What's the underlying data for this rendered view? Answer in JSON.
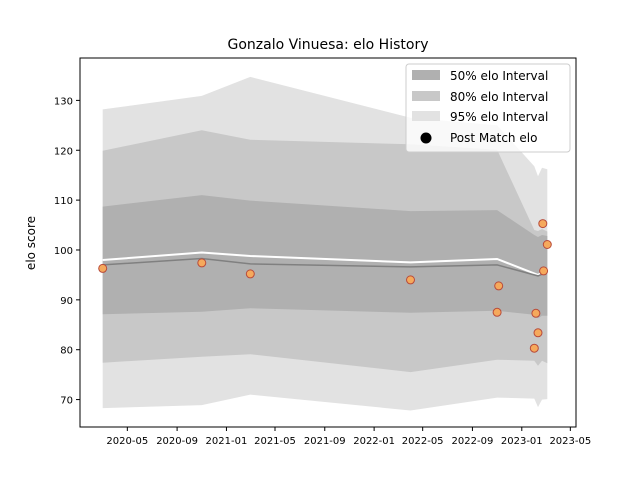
{
  "chart_data": {
    "type": "line",
    "title": "Gonzalo Vinuesa: elo History",
    "xlabel": "",
    "ylabel": "elo score",
    "x_axis": "date",
    "xlim": [
      "2020-01-05",
      "2023-05-15"
    ],
    "ylim": [
      64.5,
      138.5
    ],
    "x_ticks": [
      "2020-05-01",
      "2020-09-01",
      "2021-01-01",
      "2021-05-01",
      "2021-09-01",
      "2022-01-01",
      "2022-05-01",
      "2022-09-01",
      "2023-01-01",
      "2023-05-01"
    ],
    "x_tick_labels": [
      "2020-05",
      "2020-09",
      "2021-01",
      "2021-05",
      "2021-09",
      "2022-01",
      "2022-05",
      "2022-09",
      "2023-01",
      "2023-05"
    ],
    "y_ticks": [
      70,
      80,
      90,
      100,
      110,
      120,
      130
    ],
    "grid": false,
    "legend_position": "top-right",
    "legend": [
      {
        "label": "50% elo Interval",
        "kind": "patch",
        "color": "#b0b0b0"
      },
      {
        "label": "80% elo Interval",
        "kind": "patch",
        "color": "#c8c8c8"
      },
      {
        "label": "95% elo Interval",
        "kind": "patch",
        "color": "#e2e2e2"
      },
      {
        "label": "Post Match elo",
        "kind": "marker",
        "color": "#000000"
      }
    ],
    "colors": {
      "band_50": "#b0b0b0",
      "band_80": "#c8c8c8",
      "band_95": "#e2e2e2",
      "mean_line": "#ffffff",
      "median_line": "#808080",
      "point_fill": "#f5a95c",
      "point_edge": "#b84a3a"
    },
    "bands": {
      "x": [
        "2020-03-01",
        "2020-11-01",
        "2021-03-01",
        "2022-04-01",
        "2022-11-01",
        "2023-02-01",
        "2023-02-10",
        "2023-02-20",
        "2023-03-05"
      ],
      "p95_low": [
        68.3,
        68.9,
        71.0,
        67.8,
        70.4,
        70.2,
        68.5,
        70.0,
        70.1
      ],
      "p95_high": [
        128.2,
        130.9,
        134.7,
        126.5,
        125.0,
        116.8,
        114.8,
        116.5,
        116.2
      ],
      "p80_low": [
        77.4,
        78.6,
        79.1,
        75.5,
        78.0,
        77.8,
        76.8,
        77.8,
        77.3
      ],
      "p80_high": [
        119.9,
        124.0,
        122.1,
        121.2,
        120.1,
        104.0,
        103.8,
        104.2,
        103.7
      ],
      "p50_low": [
        87.1,
        87.6,
        88.3,
        87.4,
        87.8,
        87.0,
        86.3,
        86.8,
        86.8
      ],
      "p50_high": [
        108.7,
        111.0,
        109.9,
        107.8,
        108.0,
        103.0,
        102.6,
        103.0,
        102.8
      ]
    },
    "mean_line": {
      "x": [
        "2020-03-01",
        "2020-11-01",
        "2021-03-01",
        "2022-04-01",
        "2022-11-01",
        "2023-02-10",
        "2023-03-05"
      ],
      "y": [
        98.0,
        99.5,
        98.8,
        97.5,
        98.2,
        95.0,
        96.0
      ]
    },
    "median_line": {
      "x": [
        "2020-03-01",
        "2020-11-01",
        "2021-03-01",
        "2022-04-01",
        "2022-11-01",
        "2023-02-10",
        "2023-03-05"
      ],
      "y": [
        97.0,
        98.3,
        97.2,
        96.6,
        97.0,
        94.8,
        95.6
      ]
    },
    "series": [
      {
        "name": "Post Match elo",
        "points": [
          {
            "x": "2020-03-01",
            "y": 96.3
          },
          {
            "x": "2020-11-01",
            "y": 97.4
          },
          {
            "x": "2021-03-01",
            "y": 95.2
          },
          {
            "x": "2022-04-01",
            "y": 94.0
          },
          {
            "x": "2022-11-01",
            "y": 87.5
          },
          {
            "x": "2022-11-05",
            "y": 92.8
          },
          {
            "x": "2023-02-01",
            "y": 80.3
          },
          {
            "x": "2023-02-05",
            "y": 87.3
          },
          {
            "x": "2023-02-10",
            "y": 83.4
          },
          {
            "x": "2023-02-22",
            "y": 105.3
          },
          {
            "x": "2023-02-24",
            "y": 95.8
          },
          {
            "x": "2023-03-05",
            "y": 101.1
          }
        ]
      }
    ]
  }
}
